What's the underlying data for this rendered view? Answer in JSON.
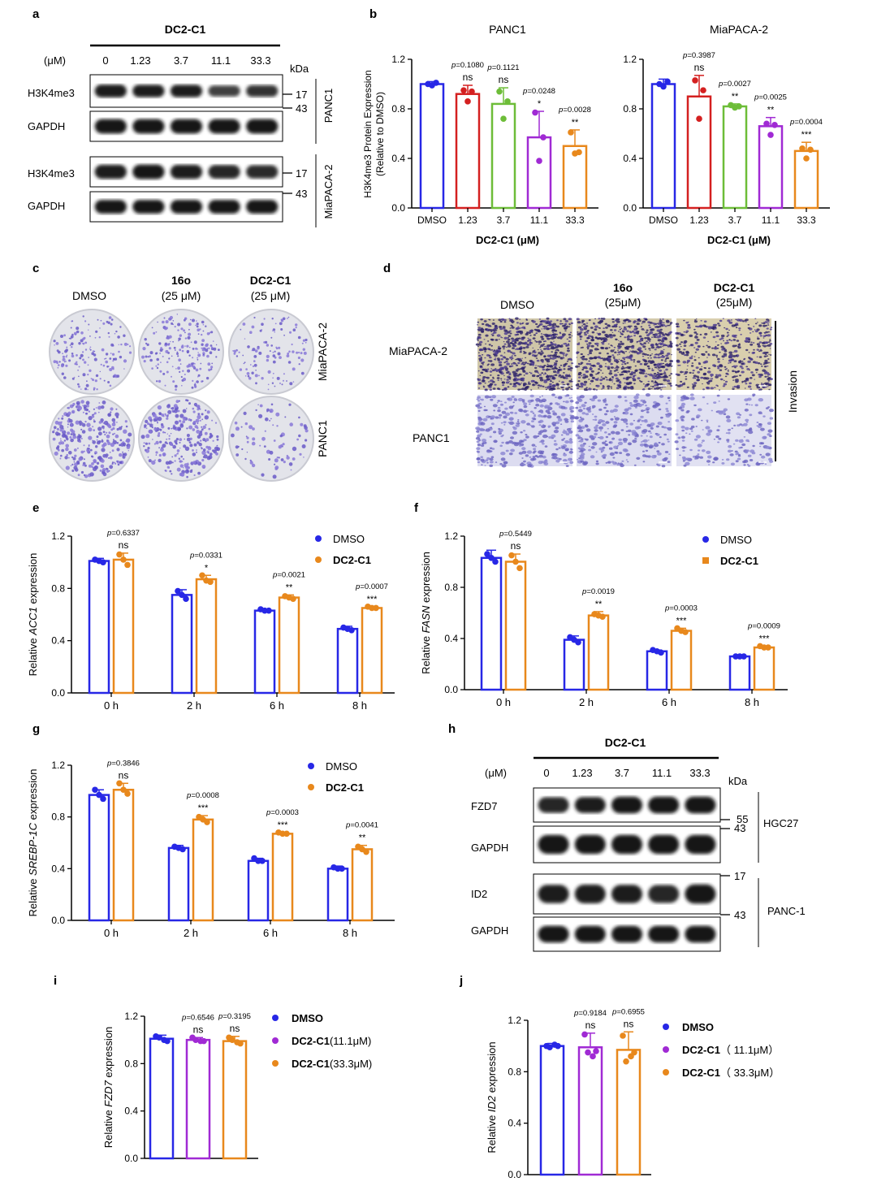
{
  "panel_labels": {
    "a": "a",
    "b": "b",
    "c": "c",
    "d": "d",
    "e": "e",
    "f": "f",
    "g": "g",
    "h": "h",
    "i": "i",
    "j": "j"
  },
  "blot_a": {
    "title": "DC2-C1",
    "unit": "(μM)",
    "doses": [
      "0",
      "1.23",
      "3.7",
      "11.1",
      "33.3"
    ],
    "kda_label": "kDa",
    "rows": [
      "H3K4me3",
      "GAPDH",
      "H3K4me3",
      "GAPDH"
    ],
    "markers": [
      "17",
      "43",
      "17",
      "43"
    ],
    "cell_lines": [
      "PANC1",
      "MiaPACA-2"
    ],
    "intensity": {
      "panc1_h3k4me3": [
        0.95,
        0.9,
        0.9,
        0.6,
        0.75
      ],
      "panc1_gapdh": [
        1,
        1,
        1,
        1,
        1
      ],
      "mia_h3k4me3": [
        0.95,
        1,
        0.95,
        0.85,
        0.8
      ],
      "mia_gapdh": [
        1,
        1,
        1,
        1,
        1
      ]
    }
  },
  "blot_h": {
    "title": "DC2-C1",
    "unit": "(μM)",
    "doses": [
      "0",
      "1.23",
      "3.7",
      "11.1",
      "33.3"
    ],
    "kda_label": "kDa",
    "rows": [
      "FZD7",
      "GAPDH",
      "ID2",
      "GAPDH"
    ],
    "markers": [
      "55",
      "43",
      "17",
      "43"
    ],
    "cell_lines": [
      "HGC27",
      "PANC-1"
    ],
    "intensity": {
      "hgc_fzd7": [
        0.85,
        0.9,
        1,
        1,
        1
      ],
      "hgc_gapdh": [
        1,
        1,
        1,
        1,
        1
      ],
      "panc_id2": [
        0.9,
        0.95,
        0.9,
        0.85,
        1
      ],
      "panc_gapdh": [
        1,
        1,
        1,
        1,
        1
      ]
    }
  },
  "panel_c": {
    "col_labels": [
      {
        "name": "DMSO",
        "sub": ""
      },
      {
        "name": "16o",
        "sub": "(25 μM)"
      },
      {
        "name": "DC2-C1",
        "sub": "(25 μM)"
      }
    ],
    "row_labels": [
      "MiaPACA-2",
      "PANC1"
    ],
    "colony_density": [
      [
        0.5,
        0.6,
        0.35
      ],
      [
        0.9,
        0.8,
        0.25
      ]
    ]
  },
  "panel_d": {
    "col_labels": [
      {
        "name": "DMSO",
        "sub": ""
      },
      {
        "name": "16o",
        "sub": "(25μM)"
      },
      {
        "name": "DC2-C1",
        "sub": "(25μM)"
      }
    ],
    "row_labels": [
      "MiaPACA-2",
      "PANC1"
    ],
    "side_label": "Invasion",
    "cell_density": [
      [
        0.9,
        0.85,
        0.55
      ],
      [
        0.7,
        0.6,
        0.4
      ]
    ]
  },
  "colors": {
    "blue": "#2727e6",
    "red": "#d42020",
    "green": "#6dbd38",
    "purple": "#a02ad4",
    "orange": "#e8881c"
  },
  "chart_data": [
    {
      "id": "b1",
      "type": "bar",
      "title": "PANC1",
      "ylabel_lines": [
        "H3K4me3 Protein Expression",
        "(Relative to DMSO)"
      ],
      "xlabel": "DC2-C1 (μM)",
      "categories": [
        "DMSO",
        "1.23",
        "3.7",
        "11.1",
        "33.3"
      ],
      "values": [
        1.0,
        0.92,
        0.84,
        0.57,
        0.5
      ],
      "errors": [
        0.02,
        0.07,
        0.13,
        0.21,
        0.13
      ],
      "points": [
        [
          1.0,
          1.01,
          0.99
        ],
        [
          0.95,
          0.94,
          0.86
        ],
        [
          0.94,
          0.86,
          0.72
        ],
        [
          0.77,
          0.57,
          0.38
        ],
        [
          0.61,
          0.45,
          0.44
        ]
      ],
      "colors": [
        "#2727e6",
        "#d42020",
        "#6dbd38",
        "#a02ad4",
        "#e8881c"
      ],
      "ylim": [
        0,
        1.2
      ],
      "yticks": [
        "0.0",
        "0.4",
        "0.8",
        "1.2"
      ],
      "annotations": [
        null,
        {
          "p": "=0.1080",
          "sig": "ns"
        },
        {
          "p": "=0.1121",
          "sig": "ns"
        },
        {
          "p": "=0.0248",
          "sig": "*"
        },
        {
          "p": "=0.0028",
          "sig": "**"
        }
      ]
    },
    {
      "id": "b2",
      "type": "bar",
      "title": "MiaPACA-2",
      "xlabel": "DC2-C1 (μM)",
      "categories": [
        "DMSO",
        "1.23",
        "3.7",
        "11.1",
        "33.3"
      ],
      "values": [
        1.0,
        0.9,
        0.82,
        0.66,
        0.46
      ],
      "errors": [
        0.04,
        0.17,
        0.02,
        0.07,
        0.07
      ],
      "points": [
        [
          1.0,
          1.02,
          0.98
        ],
        [
          1.03,
          0.95,
          0.72
        ],
        [
          0.83,
          0.82,
          0.81
        ],
        [
          0.68,
          0.67,
          0.59
        ],
        [
          0.48,
          0.47,
          0.4
        ]
      ],
      "colors": [
        "#2727e6",
        "#d42020",
        "#6dbd38",
        "#a02ad4",
        "#e8881c"
      ],
      "ylim": [
        0,
        1.2
      ],
      "yticks": [
        "0.0",
        "0.4",
        "0.8",
        "1.2"
      ],
      "annotations": [
        null,
        {
          "p": "=0.3987",
          "sig": "ns"
        },
        {
          "p": "=0.0027",
          "sig": "**"
        },
        {
          "p": "=0.0025",
          "sig": "**"
        },
        {
          "p": "=0.0004",
          "sig": "***"
        }
      ]
    },
    {
      "id": "e",
      "type": "bar",
      "ylabel_prefix": "Relative ",
      "ylabel_gene": "ACC1",
      "ylabel_suffix": " expression",
      "categories": [
        "0 h",
        "2 h",
        "6 h",
        "8 h"
      ],
      "ylim": [
        0,
        1.2
      ],
      "yticks": [
        "0.0",
        "0.4",
        "0.8",
        "1.2"
      ],
      "legend": [
        "DMSO",
        "DC2-C1"
      ],
      "legend_marker": "circle",
      "series": [
        {
          "name": "DMSO",
          "color": "#2727e6",
          "values": [
            1.01,
            0.75,
            0.63,
            0.49
          ],
          "errors": [
            0.02,
            0.04,
            0.01,
            0.02
          ],
          "points": [
            [
              1.02,
              1.0,
              1.01
            ],
            [
              0.78,
              0.72,
              0.75
            ],
            [
              0.64,
              0.63,
              0.63
            ],
            [
              0.5,
              0.48,
              0.49
            ]
          ]
        },
        {
          "name": "DC2-C1",
          "color": "#e8881c",
          "values": [
            1.02,
            0.87,
            0.73,
            0.65
          ],
          "errors": [
            0.05,
            0.03,
            0.02,
            0.01
          ],
          "points": [
            [
              1.06,
              0.98,
              1.02
            ],
            [
              0.9,
              0.85,
              0.86
            ],
            [
              0.74,
              0.72,
              0.73
            ],
            [
              0.66,
              0.65,
              0.65
            ]
          ]
        }
      ],
      "annotations": [
        {
          "p": "=0.6337",
          "sig": "ns"
        },
        {
          "p": "=0.0331",
          "sig": "*"
        },
        {
          "p": "=0.0021",
          "sig": "**"
        },
        {
          "p": "=0.0007",
          "sig": "***"
        }
      ]
    },
    {
      "id": "f",
      "type": "bar",
      "ylabel_prefix": "Relative ",
      "ylabel_gene": "FASN",
      "ylabel_suffix": " expression",
      "categories": [
        "0 h",
        "2 h",
        "6 h",
        "8 h"
      ],
      "ylim": [
        0,
        1.2
      ],
      "yticks": [
        "0.0",
        "0.4",
        "0.8",
        "1.2"
      ],
      "legend": [
        "DMSO",
        "DC2-C1"
      ],
      "legend_marker": "mixed",
      "series": [
        {
          "name": "DMSO",
          "color": "#2727e6",
          "values": [
            1.03,
            0.39,
            0.3,
            0.26
          ],
          "errors": [
            0.06,
            0.03,
            0.01,
            0.01
          ],
          "points": [
            [
              1.06,
              1.0,
              1.03
            ],
            [
              0.41,
              0.37,
              0.39
            ],
            [
              0.31,
              0.29,
              0.3
            ],
            [
              0.26,
              0.26,
              0.26
            ]
          ]
        },
        {
          "name": "DC2-C1",
          "color": "#e8881c",
          "values": [
            1.0,
            0.58,
            0.46,
            0.33
          ],
          "errors": [
            0.06,
            0.03,
            0.02,
            0.01
          ],
          "points": [
            [
              1.05,
              0.95,
              1.0
            ],
            [
              0.59,
              0.57,
              0.58
            ],
            [
              0.48,
              0.45,
              0.46
            ],
            [
              0.34,
              0.33,
              0.33
            ]
          ]
        }
      ],
      "annotations": [
        {
          "p": "=0.5449",
          "sig": "ns"
        },
        {
          "p": "=0.0019",
          "sig": "**"
        },
        {
          "p": "=0.0003",
          "sig": "***"
        },
        {
          "p": "=0.0009",
          "sig": "***"
        }
      ]
    },
    {
      "id": "g",
      "type": "bar",
      "ylabel_prefix": "Relative ",
      "ylabel_gene": "SREBP-1C",
      "ylabel_suffix": " expression",
      "categories": [
        "0 h",
        "2 h",
        "6 h",
        "8 h"
      ],
      "ylim": [
        0,
        1.2
      ],
      "yticks": [
        "0.0",
        "0.4",
        "0.8",
        "1.2"
      ],
      "legend": [
        "DMSO",
        "DC2-C1"
      ],
      "legend_marker": "circle",
      "series": [
        {
          "name": "DMSO",
          "color": "#2727e6",
          "values": [
            0.97,
            0.56,
            0.46,
            0.4
          ],
          "errors": [
            0.04,
            0.02,
            0.02,
            0.02
          ],
          "points": [
            [
              1.01,
              0.94,
              0.97
            ],
            [
              0.57,
              0.55,
              0.56
            ],
            [
              0.48,
              0.46,
              0.46
            ],
            [
              0.41,
              0.4,
              0.4
            ]
          ]
        },
        {
          "name": "DC2-C1",
          "color": "#e8881c",
          "values": [
            1.01,
            0.78,
            0.67,
            0.55
          ],
          "errors": [
            0.05,
            0.03,
            0.01,
            0.03
          ],
          "points": [
            [
              1.06,
              0.98,
              1.01
            ],
            [
              0.8,
              0.76,
              0.78
            ],
            [
              0.68,
              0.67,
              0.67
            ],
            [
              0.57,
              0.53,
              0.55
            ]
          ]
        }
      ],
      "annotations": [
        {
          "p": "=0.3846",
          "sig": "ns"
        },
        {
          "p": "=0.0008",
          "sig": "***"
        },
        {
          "p": "=0.0003",
          "sig": "***"
        },
        {
          "p": "=0.0041",
          "sig": "**"
        }
      ]
    },
    {
      "id": "i",
      "type": "bar",
      "ylabel_prefix": "Relative ",
      "ylabel_gene": "FZD7",
      "ylabel_suffix": " expression",
      "categories": [
        "DMSO",
        "DC2-C1(11.1μM)",
        "DC2-C1(33.3μM)"
      ],
      "values": [
        1.01,
        1.0,
        0.99
      ],
      "errors": [
        0.03,
        0.02,
        0.04
      ],
      "points": [
        [
          1.03,
          0.99,
          1.02,
          1.0
        ],
        [
          1.02,
          0.99,
          1.0,
          0.99
        ],
        [
          1.02,
          0.97,
          1.0,
          0.98
        ]
      ],
      "colors": [
        "#2727e6",
        "#a02ad4",
        "#e8881c"
      ],
      "ylim": [
        0,
        1.2
      ],
      "yticks": [
        "0.0",
        "0.4",
        "0.8",
        "1.2"
      ],
      "legend": [
        {
          "bold": "DMSO",
          "rest": ""
        },
        {
          "bold": "DC2-C1",
          "rest": "(11.1μM)"
        },
        {
          "bold": "DC2-C1",
          "rest": "(33.3μM)"
        }
      ],
      "annotations": [
        null,
        {
          "p": "=0.6546",
          "sig": "ns"
        },
        {
          "p": "=0.3195",
          "sig": "ns"
        }
      ]
    },
    {
      "id": "j",
      "type": "bar",
      "ylabel_prefix": "Relative ",
      "ylabel_gene": "ID2",
      "ylabel_suffix": " expression",
      "categories": [
        "DMSO",
        "DC2-C1（11.1μM）",
        "DC2-C1（33.3μM）"
      ],
      "values": [
        1.0,
        0.99,
        0.97
      ],
      "errors": [
        0.02,
        0.11,
        0.14
      ],
      "points": [
        [
          1.0,
          1.0,
          0.99,
          1.01
        ],
        [
          1.09,
          0.96,
          0.95,
          0.92
        ],
        [
          1.08,
          0.95,
          0.88,
          0.92
        ]
      ],
      "colors": [
        "#2727e6",
        "#a02ad4",
        "#e8881c"
      ],
      "ylim": [
        0,
        1.2
      ],
      "yticks": [
        "0.0",
        "0.4",
        "0.8",
        "1.2"
      ],
      "legend": [
        {
          "bold": "DMSO",
          "rest": ""
        },
        {
          "bold": "DC2-C1",
          "rest": "（ 11.1μM）"
        },
        {
          "bold": "DC2-C1",
          "rest": "（ 33.3μM）"
        }
      ],
      "annotations": [
        null,
        {
          "p": "=0.9184",
          "sig": "ns"
        },
        {
          "p": "=0.6955",
          "sig": "ns"
        }
      ]
    }
  ]
}
